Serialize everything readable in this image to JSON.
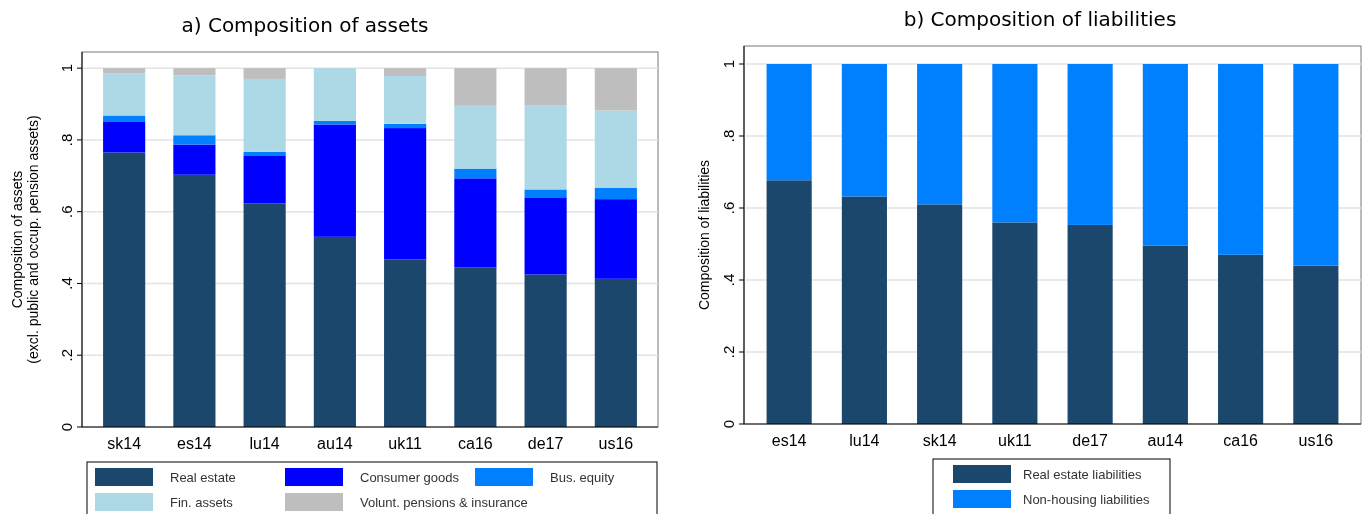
{
  "chart_data": [
    {
      "type": "bar",
      "stacked": true,
      "title": "a) Composition of assets",
      "ylabel": "Composition of assets\n(excl. public and occup. pension assets)",
      "categories": [
        "sk14",
        "es14",
        "lu14",
        "au14",
        "uk11",
        "ca16",
        "de17",
        "us16"
      ],
      "ylim": [
        0,
        1.045
      ],
      "yticks": [
        {
          "value": 0,
          "label": "0"
        },
        {
          "value": 0.2,
          "label": ".2"
        },
        {
          "value": 0.4,
          "label": ".4"
        },
        {
          "value": 0.6,
          "label": ".6"
        },
        {
          "value": 0.8,
          "label": ".8"
        },
        {
          "value": 1,
          "label": "1"
        }
      ],
      "grid": "y",
      "legend": "bottom",
      "series": [
        {
          "name": "Real estate",
          "color": "#1c476d",
          "values": [
            0.765,
            0.703,
            0.623,
            0.53,
            0.467,
            0.445,
            0.425,
            0.413
          ]
        },
        {
          "name": "Consumer goods",
          "color": "#0000ff",
          "values": [
            0.085,
            0.084,
            0.134,
            0.313,
            0.366,
            0.248,
            0.215,
            0.222
          ]
        },
        {
          "name": "Bus. equity",
          "color": "#0080ff",
          "values": [
            0.018,
            0.026,
            0.01,
            0.01,
            0.012,
            0.027,
            0.022,
            0.032
          ]
        },
        {
          "name": "Fin. assets",
          "color": "#add8e6",
          "values": [
            0.117,
            0.167,
            0.203,
            0.147,
            0.133,
            0.175,
            0.235,
            0.215
          ]
        },
        {
          "name": "Volunt. pensions & insurance",
          "color": "#bebebe",
          "values": [
            0.015,
            0.02,
            0.03,
            0,
            0.022,
            0.105,
            0.103,
            0.118
          ]
        }
      ]
    },
    {
      "type": "bar",
      "stacked": true,
      "title": "b) Composition of liabilities",
      "ylabel": "Composition of liabilities",
      "categories": [
        "es14",
        "lu14",
        "sk14",
        "uk11",
        "de17",
        "au14",
        "ca16",
        "us16"
      ],
      "ylim": [
        0,
        1.05
      ],
      "yticks": [
        {
          "value": 0,
          "label": "0"
        },
        {
          "value": 0.2,
          "label": ".2"
        },
        {
          "value": 0.4,
          "label": ".4"
        },
        {
          "value": 0.6,
          "label": ".6"
        },
        {
          "value": 0.8,
          "label": ".8"
        },
        {
          "value": 1,
          "label": "1"
        }
      ],
      "grid": "y",
      "legend": "bottom",
      "series": [
        {
          "name": "Real estate liabilities",
          "color": "#1c476d",
          "values": [
            0.677,
            0.632,
            0.61,
            0.56,
            0.553,
            0.495,
            0.47,
            0.44
          ]
        },
        {
          "name": "Non-housing liabilities",
          "color": "#0080ff",
          "values": [
            0.323,
            0.368,
            0.39,
            0.44,
            0.447,
            0.505,
            0.53,
            0.56
          ]
        }
      ]
    }
  ]
}
